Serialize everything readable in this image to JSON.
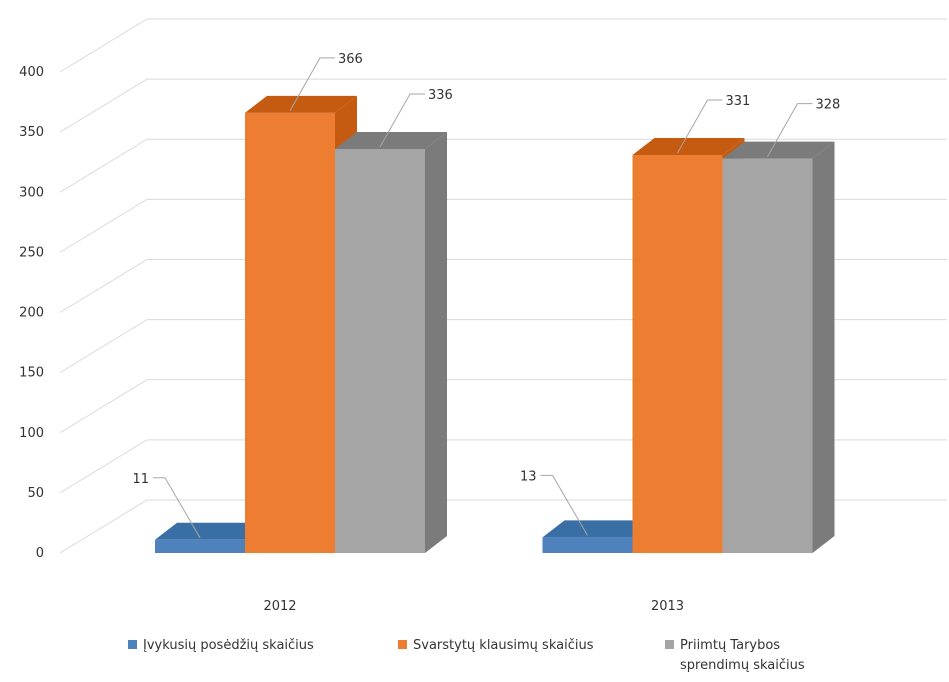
{
  "chart_data": {
    "type": "bar",
    "view": "3d-clustered-column",
    "categories": [
      "2012",
      "2013"
    ],
    "series": [
      {
        "name": "Įvykusių posėdžių skaičius",
        "values": [
          11,
          13
        ],
        "color": "#4f81bd"
      },
      {
        "name": "Svarstytų klausimų skaičius",
        "values": [
          366,
          331
        ],
        "color": "#ed7d31"
      },
      {
        "name": "Priimtų Tarybos sprendimų skaičius",
        "values": [
          336,
          328
        ],
        "color": "#a5a5a5"
      }
    ],
    "series_shade": [
      "#3a6fa5",
      "#c55a11",
      "#7b7b7b"
    ],
    "series_legend_lines": [
      [
        "Įvykusių posėdžių skaičius"
      ],
      [
        "Svarstytų klausimų skaičius"
      ],
      [
        "Priimtų Tarybos",
        "sprendimų skaičius"
      ]
    ],
    "ylim": [
      0,
      400
    ],
    "ytick_step": 50,
    "yticks": [
      0,
      50,
      100,
      150,
      200,
      250,
      300,
      350,
      400
    ],
    "grid": true,
    "gridline_color": "#d9d9d9",
    "legend_position": "bottom",
    "data_labels": true
  }
}
